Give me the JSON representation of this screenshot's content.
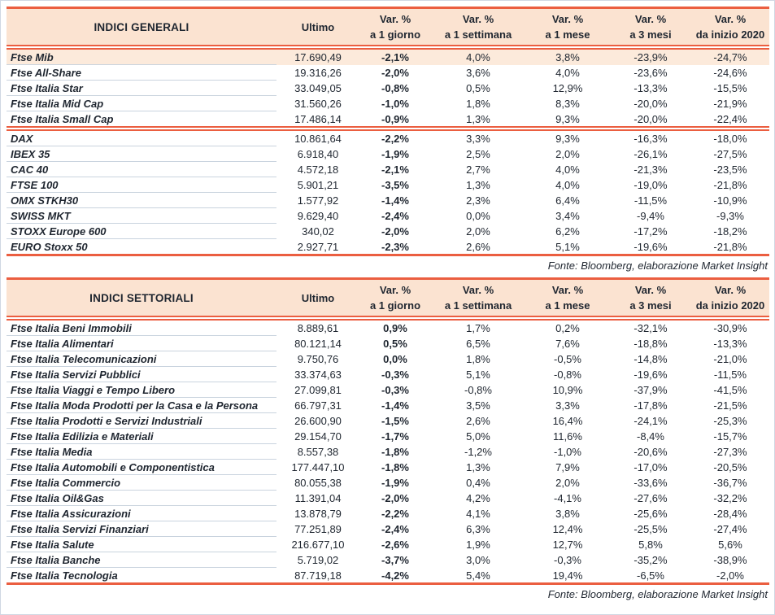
{
  "colors": {
    "red": "#EB5E40",
    "peach": "#FBE3D1",
    "highlight": "#FCEADB",
    "sep": "#C9D3DE",
    "ink": "#1F2630"
  },
  "tables": [
    {
      "title": "INDICI GENERALI",
      "columns": [
        {
          "label": "Ultimo"
        },
        {
          "top": "Var. %",
          "bottom": "a 1 giorno"
        },
        {
          "top": "Var. %",
          "bottom": "a 1 settimana"
        },
        {
          "top": "Var. %",
          "bottom": "a 1 mese"
        },
        {
          "top": "Var. %",
          "bottom": "a 3 mesi"
        },
        {
          "top": "Var. %",
          "bottom": "da inizio 2020"
        }
      ],
      "source_note": "Fonte: Bloomberg, elaborazione Market Insight",
      "row_groups": [
        [
          {
            "name": "Ftse Mib",
            "highlighted": true,
            "values": [
              "17.690,49",
              "-2,1%",
              "4,0%",
              "3,8%",
              "-23,9%",
              "-24,7%"
            ]
          },
          {
            "name": "Ftse All-Share",
            "values": [
              "19.316,26",
              "-2,0%",
              "3,6%",
              "4,0%",
              "-23,6%",
              "-24,6%"
            ]
          },
          {
            "name": "Ftse Italia Star",
            "values": [
              "33.049,05",
              "-0,8%",
              "0,5%",
              "12,9%",
              "-13,3%",
              "-15,5%"
            ]
          },
          {
            "name": "Ftse Italia Mid Cap",
            "values": [
              "31.560,26",
              "-1,0%",
              "1,8%",
              "8,3%",
              "-20,0%",
              "-21,9%"
            ]
          },
          {
            "name": "Ftse Italia Small Cap",
            "values": [
              "17.486,14",
              "-0,9%",
              "1,3%",
              "9,3%",
              "-20,0%",
              "-22,4%"
            ]
          }
        ],
        [
          {
            "name": "DAX",
            "values": [
              "10.861,64",
              "-2,2%",
              "3,3%",
              "9,3%",
              "-16,3%",
              "-18,0%"
            ]
          },
          {
            "name": "IBEX 35",
            "values": [
              "6.918,40",
              "-1,9%",
              "2,5%",
              "2,0%",
              "-26,1%",
              "-27,5%"
            ]
          },
          {
            "name": "CAC 40",
            "values": [
              "4.572,18",
              "-2,1%",
              "2,7%",
              "4,0%",
              "-21,3%",
              "-23,5%"
            ]
          },
          {
            "name": "FTSE 100",
            "values": [
              "5.901,21",
              "-3,5%",
              "1,3%",
              "4,0%",
              "-19,0%",
              "-21,8%"
            ]
          },
          {
            "name": "OMX STKH30",
            "values": [
              "1.577,92",
              "-1,4%",
              "2,3%",
              "6,4%",
              "-11,5%",
              "-10,9%"
            ]
          },
          {
            "name": "SWISS MKT",
            "values": [
              "9.629,40",
              "-2,4%",
              "0,0%",
              "3,4%",
              "-9,4%",
              "-9,3%"
            ]
          },
          {
            "name": "STOXX Europe 600",
            "values": [
              "340,02",
              "-2,0%",
              "2,0%",
              "6,2%",
              "-17,2%",
              "-18,2%"
            ]
          },
          {
            "name": "EURO Stoxx 50",
            "values": [
              "2.927,71",
              "-2,3%",
              "2,6%",
              "5,1%",
              "-19,6%",
              "-21,8%"
            ]
          }
        ]
      ]
    },
    {
      "title": "INDICI SETTORIALI",
      "columns": [
        {
          "label": "Ultimo"
        },
        {
          "top": "Var. %",
          "bottom": "a 1 giorno"
        },
        {
          "top": "Var. %",
          "bottom": "a 1 settimana"
        },
        {
          "top": "Var. %",
          "bottom": "a 1 mese"
        },
        {
          "top": "Var. %",
          "bottom": "a 3 mesi"
        },
        {
          "top": "Var. %",
          "bottom": "da inizio 2020"
        }
      ],
      "source_note": "Fonte: Bloomberg, elaborazione Market Insight",
      "row_groups": [
        [
          {
            "name": "Ftse Italia Beni Immobili",
            "values": [
              "8.889,61",
              "0,9%",
              "1,7%",
              "0,2%",
              "-32,1%",
              "-30,9%"
            ]
          },
          {
            "name": "Ftse Italia Alimentari",
            "values": [
              "80.121,14",
              "0,5%",
              "6,5%",
              "7,6%",
              "-18,8%",
              "-13,3%"
            ]
          },
          {
            "name": "Ftse Italia Telecomunicazioni",
            "values": [
              "9.750,76",
              "0,0%",
              "1,8%",
              "-0,5%",
              "-14,8%",
              "-21,0%"
            ]
          },
          {
            "name": "Ftse Italia Servizi Pubblici",
            "values": [
              "33.374,63",
              "-0,3%",
              "5,1%",
              "-0,8%",
              "-19,6%",
              "-11,5%"
            ]
          },
          {
            "name": "Ftse Italia Viaggi e Tempo Libero",
            "values": [
              "27.099,81",
              "-0,3%",
              "-0,8%",
              "10,9%",
              "-37,9%",
              "-41,5%"
            ]
          },
          {
            "name": "Ftse Italia Moda Prodotti per la Casa e la Persona",
            "values": [
              "66.797,31",
              "-1,4%",
              "3,5%",
              "3,3%",
              "-17,8%",
              "-21,5%"
            ]
          },
          {
            "name": "Ftse Italia Prodotti e Servizi Industriali",
            "values": [
              "26.600,90",
              "-1,5%",
              "2,6%",
              "16,4%",
              "-24,1%",
              "-25,3%"
            ]
          },
          {
            "name": "Ftse Italia Edilizia e Materiali",
            "values": [
              "29.154,70",
              "-1,7%",
              "5,0%",
              "11,6%",
              "-8,4%",
              "-15,7%"
            ]
          },
          {
            "name": "Ftse Italia Media",
            "values": [
              "8.557,38",
              "-1,8%",
              "-1,2%",
              "-1,0%",
              "-20,6%",
              "-27,3%"
            ]
          },
          {
            "name": "Ftse Italia Automobili e Componentistica",
            "values": [
              "177.447,10",
              "-1,8%",
              "1,3%",
              "7,9%",
              "-17,0%",
              "-20,5%"
            ]
          },
          {
            "name": "Ftse Italia Commercio",
            "values": [
              "80.055,38",
              "-1,9%",
              "0,4%",
              "2,0%",
              "-33,6%",
              "-36,7%"
            ]
          },
          {
            "name": "Ftse Italia Oil&Gas",
            "values": [
              "11.391,04",
              "-2,0%",
              "4,2%",
              "-4,1%",
              "-27,6%",
              "-32,2%"
            ]
          },
          {
            "name": "Ftse Italia Assicurazioni",
            "values": [
              "13.878,79",
              "-2,2%",
              "4,1%",
              "3,8%",
              "-25,6%",
              "-28,4%"
            ]
          },
          {
            "name": "Ftse Italia Servizi Finanziari",
            "values": [
              "77.251,89",
              "-2,4%",
              "6,3%",
              "12,4%",
              "-25,5%",
              "-27,4%"
            ]
          },
          {
            "name": "Ftse Italia Salute",
            "values": [
              "216.677,10",
              "-2,6%",
              "1,9%",
              "12,7%",
              "5,8%",
              "5,6%"
            ]
          },
          {
            "name": "Ftse Italia Banche",
            "values": [
              "5.719,02",
              "-3,7%",
              "3,0%",
              "-0,3%",
              "-35,2%",
              "-38,9%"
            ]
          },
          {
            "name": "Ftse Italia Tecnologia",
            "values": [
              "87.719,18",
              "-4,2%",
              "5,4%",
              "19,4%",
              "-6,5%",
              "-2,0%"
            ]
          }
        ]
      ]
    }
  ]
}
